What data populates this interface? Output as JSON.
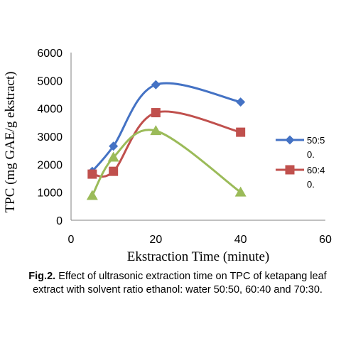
{
  "chart_data": {
    "type": "line",
    "xlabel": "Ekstraction Time (minute)",
    "ylabel": "TPC (mg GAE/g ekstract)",
    "xlim": [
      0,
      60
    ],
    "ylim": [
      0,
      6000
    ],
    "xticks": [
      "0",
      "20",
      "40",
      "60"
    ],
    "yticks": [
      "0",
      "1000",
      "2000",
      "3000",
      "4000",
      "5000",
      "6000"
    ],
    "grid": false,
    "legend_position": "right",
    "smooth": true,
    "series": [
      {
        "name": "50:5\n0.",
        "color": "#4472C4",
        "marker": "diamond",
        "x": [
          5,
          10,
          20,
          40
        ],
        "y": [
          1750,
          2650,
          4850,
          4230
        ]
      },
      {
        "name": "60:4\n0.",
        "color": "#C0504D",
        "marker": "square",
        "x": [
          5,
          10,
          20,
          40
        ],
        "y": [
          1650,
          1750,
          3850,
          3150
        ]
      },
      {
        "name": "",
        "color": "#9BBB59",
        "marker": "triangle",
        "x": [
          5,
          10,
          20,
          40
        ],
        "y": [
          880,
          2250,
          3200,
          1000
        ]
      }
    ]
  },
  "caption": {
    "label": "Fig.2.",
    "text": " Effect of ultrasonic extraction time on TPC of ketapang leaf extract with solvent ratio ethanol: water 50:50, 60:40 and 70:30."
  }
}
